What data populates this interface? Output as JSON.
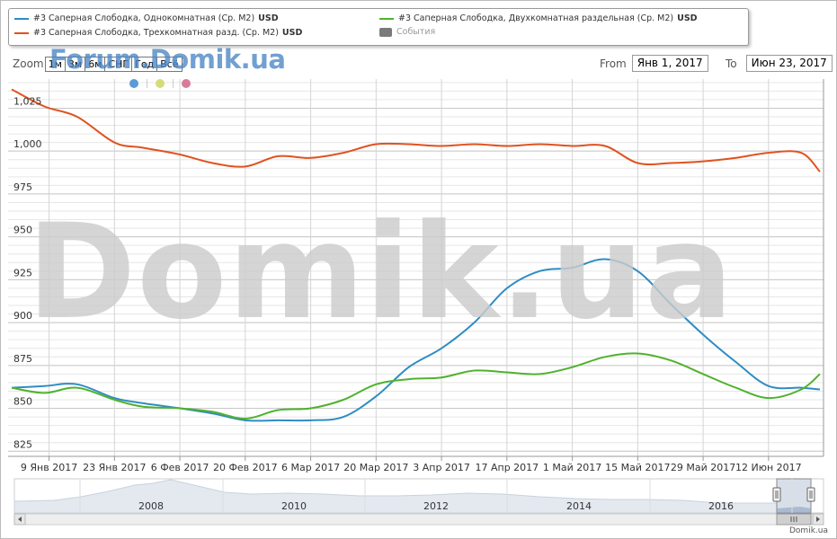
{
  "legend": {
    "items": [
      {
        "label": "#3 Саперная Слободка, Однокомнатная (Ср. М2)",
        "unit": "USD",
        "color": "#2f8cc4"
      },
      {
        "label": "#3 Саперная Слободка, Двухкомнатная раздельная (Ср. М2)",
        "unit": "USD",
        "color": "#50b22d"
      },
      {
        "label": "#3 Саперная Слободка, Трехкомнатная разд. (Ср. М2)",
        "unit": "USD",
        "color": "#e0521f"
      },
      {
        "label": "События",
        "unit": "",
        "color": "#7a7a7a"
      }
    ]
  },
  "toolbar": {
    "zoom_label": "Zoom",
    "zoom_buttons": [
      "1м",
      "3м",
      "6м",
      "СНГ",
      "Год",
      "Всё"
    ],
    "from_label": "From",
    "from_value": "Янв 1, 2017",
    "to_label": "To",
    "to_value": "Июн 23, 2017"
  },
  "flag_dots": [
    "#5b9bd5",
    "#d4dc7a",
    "#d97a9b"
  ],
  "watermarks": {
    "forum": "Forum.Domik.ua",
    "main": "Domik.ua"
  },
  "credit": "Domik.ua",
  "chart_data": {
    "type": "line",
    "x_ticks": [
      "9 Янв 2017",
      "23 Янв 2017",
      "6 Фев 2017",
      "20 Фев 2017",
      "6 Мар 2017",
      "20 Мар 2017",
      "3 Апр 2017",
      "17 Апр 2017",
      "1 Май 2017",
      "15 Май 2017",
      "29 Май 2017",
      "12 Июн 2017"
    ],
    "x_tick_days": [
      8,
      22,
      36,
      50,
      64,
      78,
      92,
      106,
      120,
      134,
      148,
      162
    ],
    "x_range_days": [
      0,
      173
    ],
    "ylim": [
      822,
      1042
    ],
    "y_ticks": [
      "825",
      "850",
      "875",
      "900",
      "925",
      "950",
      "975",
      "1,000",
      "1,025"
    ],
    "y_tick_values": [
      825,
      850,
      875,
      900,
      925,
      950,
      975,
      1000,
      1025
    ],
    "series": [
      {
        "name": "#3 Саперная Слободка, Трехкомнатная разд. (Ср. М2)",
        "color": "#e0521f",
        "x": [
          0,
          7,
          14,
          22,
          28,
          36,
          43,
          50,
          57,
          64,
          71,
          78,
          85,
          92,
          99,
          106,
          113,
          120,
          127,
          134,
          141,
          148,
          155,
          162,
          169,
          173
        ],
        "y": [
          1036,
          1026,
          1020,
          1005,
          1002,
          998,
          993,
          991,
          997,
          996,
          999,
          1004,
          1004,
          1003,
          1004,
          1003,
          1004,
          1003,
          1003,
          993,
          993,
          994,
          996,
          999,
          999,
          988
        ]
      },
      {
        "name": "#3 Саперная Слободка, Однокомнатная (Ср. М2)",
        "color": "#2f8cc4",
        "x": [
          0,
          7,
          14,
          22,
          28,
          36,
          43,
          50,
          57,
          64,
          71,
          78,
          85,
          92,
          99,
          106,
          113,
          120,
          127,
          134,
          141,
          148,
          155,
          162,
          169,
          173
        ],
        "y": [
          862,
          863,
          864,
          856,
          853,
          850,
          847,
          843,
          843,
          843,
          845,
          857,
          874,
          885,
          900,
          920,
          930,
          932,
          937,
          930,
          911,
          893,
          877,
          863,
          862,
          861
        ]
      },
      {
        "name": "#3 Саперная Слободка, Двухкомнатная раздельная (Ср. М2)",
        "color": "#50b22d",
        "x": [
          0,
          7,
          14,
          22,
          28,
          36,
          43,
          50,
          57,
          64,
          71,
          78,
          85,
          92,
          99,
          106,
          113,
          120,
          127,
          134,
          141,
          148,
          155,
          162,
          169,
          173
        ],
        "y": [
          862,
          859,
          862,
          855,
          851,
          850,
          848,
          844,
          849,
          850,
          855,
          864,
          867,
          868,
          872,
          871,
          870,
          874,
          880,
          882,
          878,
          870,
          862,
          856,
          861,
          870
        ]
      }
    ],
    "navigator": {
      "year_labels": [
        "2008",
        "2010",
        "2012",
        "2014",
        "2016"
      ]
    }
  }
}
